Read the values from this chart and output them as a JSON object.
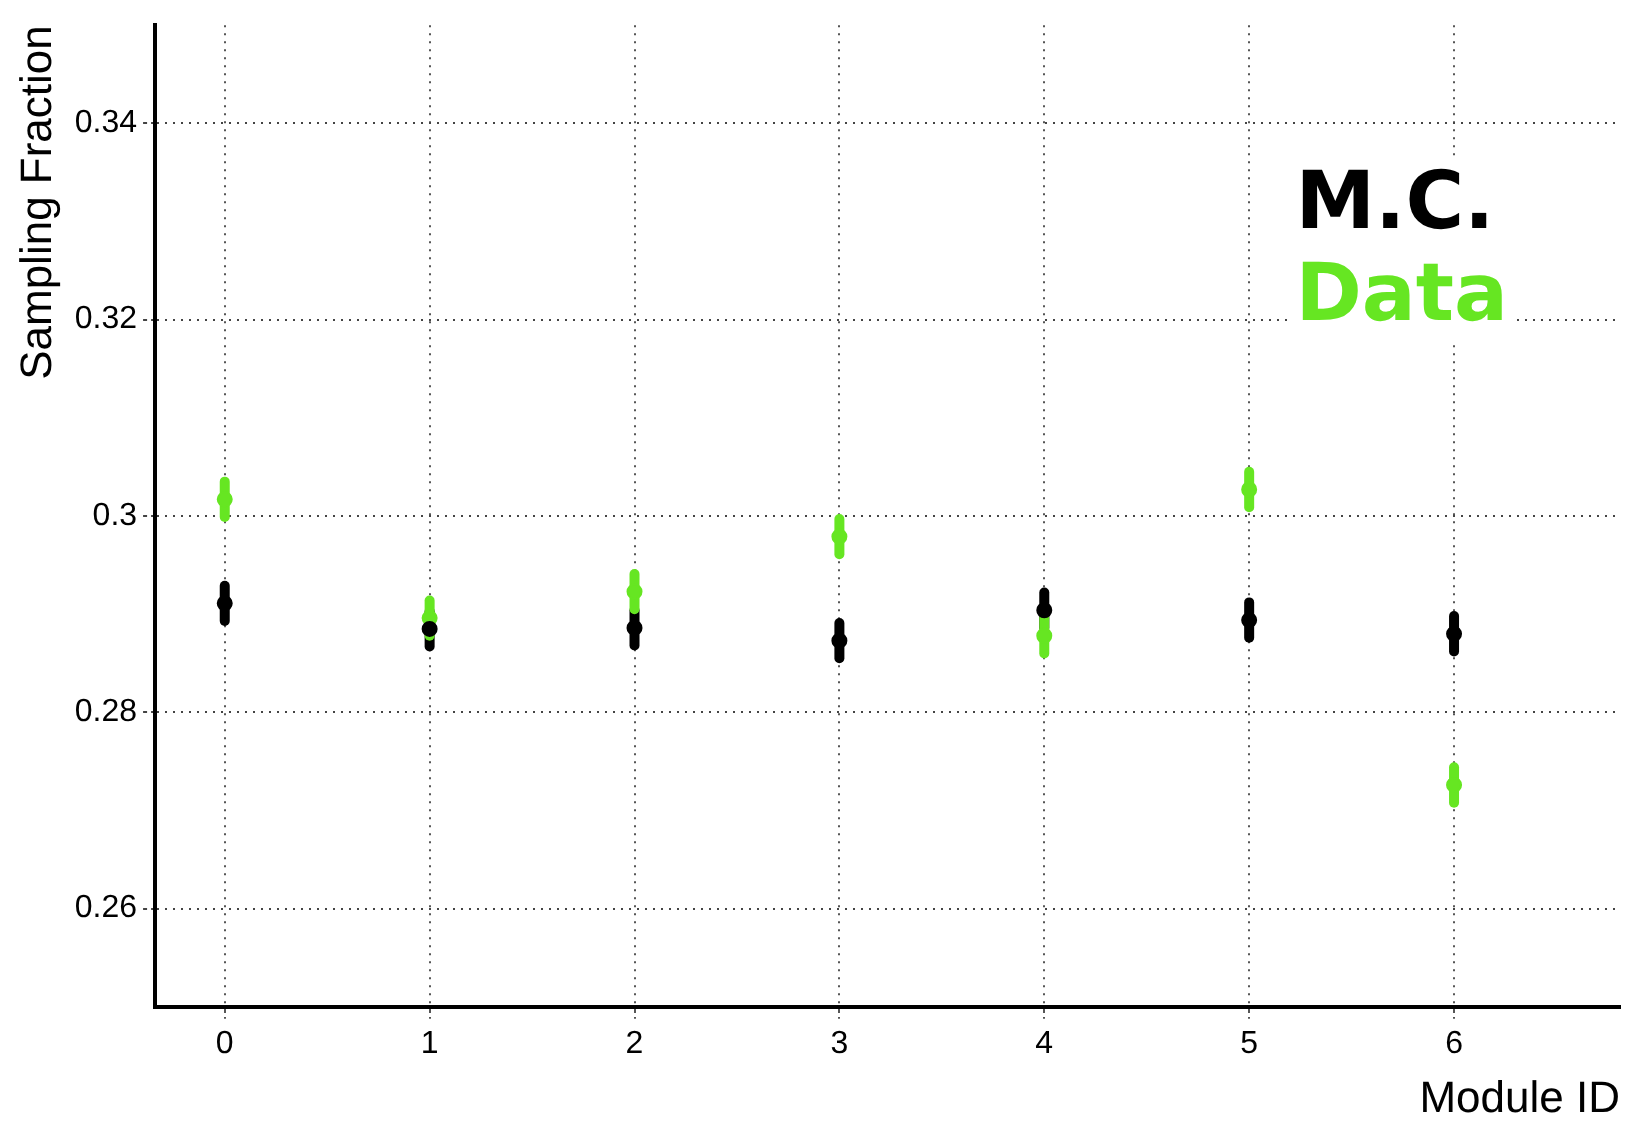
{
  "chart_data": {
    "type": "scatter",
    "xlabel": "Module ID",
    "ylabel": "Sampling Fraction",
    "x": [
      0,
      1,
      2,
      3,
      4,
      5,
      6
    ],
    "series": [
      {
        "name": "M.C.",
        "color": "#000000",
        "values": [
          0.2911,
          0.2885,
          0.2886,
          0.2873,
          0.2904,
          0.2894,
          0.288
        ],
        "errors": [
          0.0018,
          0.0018,
          0.0018,
          0.0018,
          0.0018,
          0.0018,
          0.0018
        ]
      },
      {
        "name": "Data",
        "color": "#66e622",
        "values": [
          0.3017,
          0.2896,
          0.2923,
          0.2979,
          0.2878,
          0.3027,
          0.2726
        ],
        "errors": [
          0.0018,
          0.0018,
          0.0018,
          0.0018,
          0.0018,
          0.0018,
          0.0018
        ]
      }
    ],
    "xlim": [
      -0.34,
      6.81
    ],
    "ylim": [
      0.25,
      0.35
    ],
    "xticks": [
      0,
      1,
      2,
      3,
      4,
      5,
      6
    ],
    "yticks": [
      0.26,
      0.28,
      0.3,
      0.32,
      0.34
    ],
    "grid": true,
    "legend": "top right",
    "marker": "circle"
  }
}
